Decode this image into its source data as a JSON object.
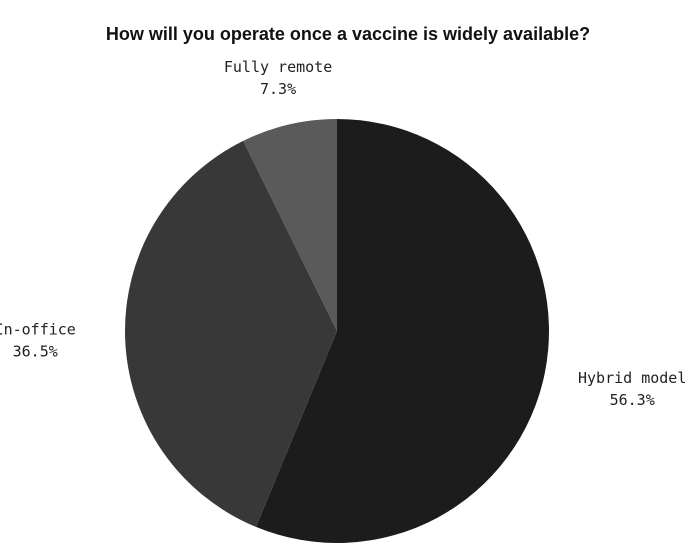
{
  "chart_data": {
    "type": "pie",
    "title": "How will you operate once a vaccine is widely available?",
    "categories": [
      "Hybrid model",
      "In-office",
      "Fully remote"
    ],
    "values": [
      56.3,
      36.5,
      7.3
    ],
    "value_labels": [
      "56.3%",
      "36.5%",
      "7.3%"
    ],
    "colors": [
      "#1c1c1c",
      "#383838",
      "#5a5a5a"
    ]
  }
}
